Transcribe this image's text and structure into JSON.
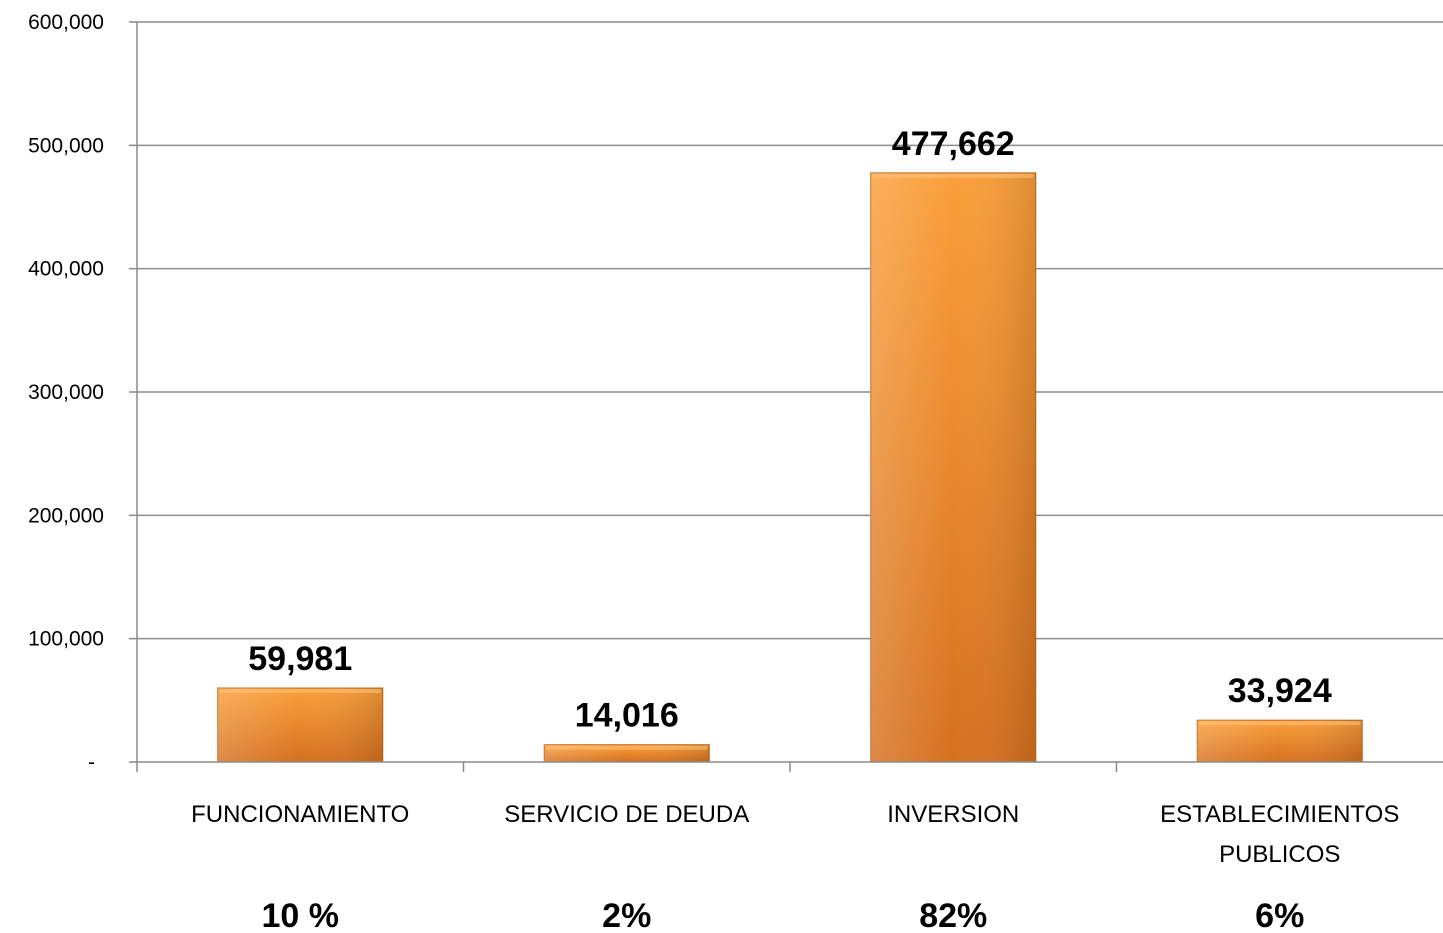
{
  "chart_data": {
    "type": "bar",
    "categories": [
      [
        "FUNCIONAMIENTO"
      ],
      [
        "SERVICIO DE  DEUDA"
      ],
      [
        "INVERSION"
      ],
      [
        "ESTABLECIMIENTOS",
        "PUBLICOS"
      ]
    ],
    "values": [
      59981,
      14016,
      477662,
      33924
    ],
    "data_labels": [
      "59,981",
      "14,016",
      "477,662",
      "33,924"
    ],
    "percent_labels": [
      "10 %",
      "2%",
      "82%",
      "6%"
    ],
    "ylim": [
      0,
      600000
    ],
    "yticks": [
      {
        "value": 0,
        "label": "-"
      },
      {
        "value": 100000,
        "label": "100,000"
      },
      {
        "value": 200000,
        "label": "200,000"
      },
      {
        "value": 300000,
        "label": "300,000"
      },
      {
        "value": 400000,
        "label": "400,000"
      },
      {
        "value": 500000,
        "label": "500,000"
      },
      {
        "value": 600000,
        "label": "600,000"
      }
    ],
    "grid": true,
    "colors": {
      "bar_light": "#F9A03A",
      "bar_dark": "#D46F1E",
      "gridline": "#8C8C8C"
    }
  }
}
